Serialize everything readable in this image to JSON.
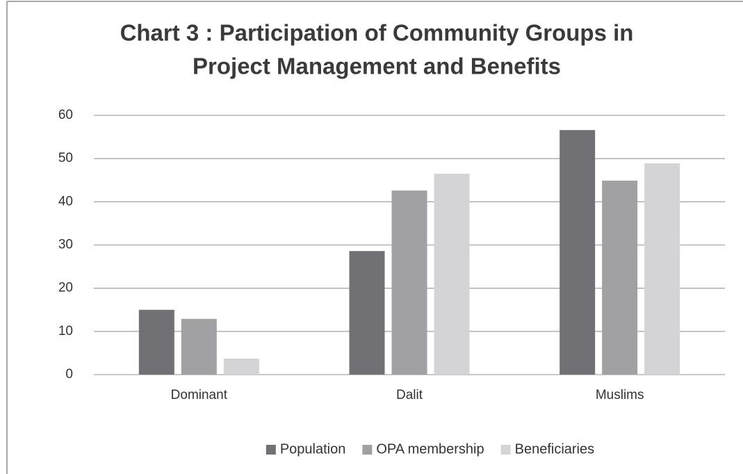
{
  "chart_data": {
    "type": "bar",
    "title": [
      "Chart 3 : Participation of Community Groups in",
      "Project Management and Benefits"
    ],
    "categories": [
      "Dominant",
      "Dalit",
      "Muslims"
    ],
    "series": [
      {
        "name": "Population",
        "color": "#717175",
        "values": [
          15,
          28.6,
          56.6
        ]
      },
      {
        "name": "OPA membership",
        "color": "#a1a1a4",
        "values": [
          12.9,
          42.6,
          44.9
        ]
      },
      {
        "name": "Beneficiaries",
        "color": "#d4d4d6",
        "values": [
          3.7,
          46.5,
          48.9
        ]
      }
    ],
    "ylim": [
      0,
      60
    ],
    "yticks": [
      0,
      10,
      20,
      30,
      40,
      50,
      60
    ],
    "grid": true,
    "legend": "bottom"
  }
}
